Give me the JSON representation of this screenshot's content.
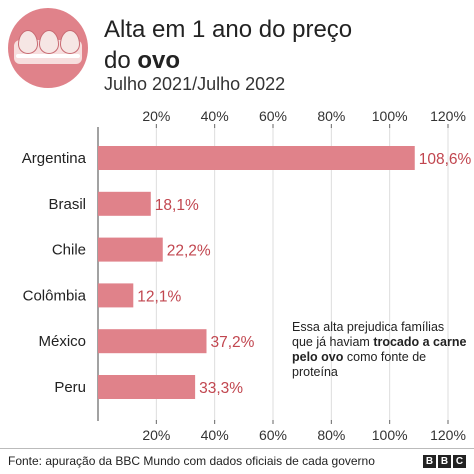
{
  "header": {
    "title_line1": "Alta em 1 ano do preço",
    "title_line2_prefix": "do ",
    "title_line2_strong": "ovo",
    "subtitle": "Julho 2021/Julho 2022"
  },
  "annotation": {
    "part1": "Essa alta prejudica famílias que já haviam ",
    "bold": "trocado a carne pelo ovo",
    "part2": " como fonte de proteína"
  },
  "footer": {
    "source": "Fonte: apuração da BBC Mundo com dados oficiais de cada governo",
    "brand_letters": [
      "B",
      "B",
      "C"
    ]
  },
  "colors": {
    "bar": "#e0828a",
    "value_label": "#c1464f",
    "axis": "#666666",
    "grid": "#dddddd"
  },
  "chart_data": {
    "type": "bar",
    "orientation": "horizontal",
    "categories": [
      "Argentina",
      "Brasil",
      "Chile",
      "Colômbia",
      "México",
      "Peru"
    ],
    "values": [
      108.6,
      18.1,
      22.2,
      12.1,
      37.2,
      33.3
    ],
    "value_labels": [
      "108,6%",
      "18,1%",
      "22,2%",
      "12,1%",
      "37,2%",
      "33,3%"
    ],
    "x_ticks": [
      20,
      40,
      60,
      80,
      100,
      120
    ],
    "x_tick_labels": [
      "20%",
      "40%",
      "60%",
      "80%",
      "100%",
      "120%"
    ],
    "xlim": [
      0,
      120
    ],
    "tick_axes": "top and bottom",
    "grid": true
  }
}
